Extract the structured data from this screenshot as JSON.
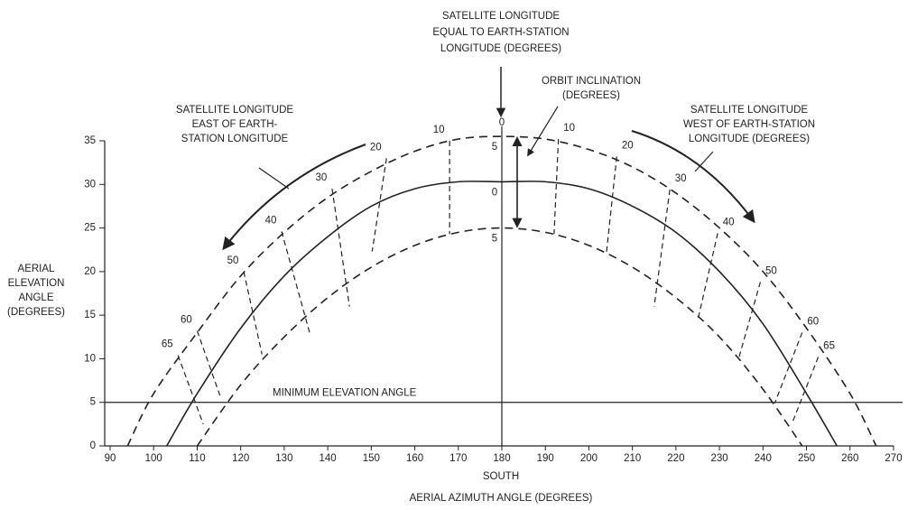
{
  "chart_data": {
    "type": "line",
    "title": [
      "SATELLITE LONGITUDE",
      "EQUAL TO EARTH-STATION",
      "LONGITUDE (DEGREES)"
    ],
    "center_label": "0",
    "xlabel": "AERIAL AZIMUTH ANGLE (DEGREES)",
    "xsublabel": "SOUTH",
    "ylabel": [
      "AERIAL",
      "ELEVATION",
      "ANGLE",
      "(DEGREES)"
    ],
    "xlim": [
      90,
      270
    ],
    "ylim": [
      0,
      35
    ],
    "xticks": [
      90,
      100,
      110,
      120,
      130,
      140,
      150,
      160,
      170,
      180,
      190,
      200,
      210,
      220,
      230,
      240,
      250,
      260,
      270
    ],
    "yticks": [
      0,
      5,
      10,
      15,
      20,
      25,
      30,
      35
    ],
    "annotations": {
      "east": [
        "SATELLITE LONGITUDE",
        "EAST OF EARTH-",
        "STATION LONGITUDE"
      ],
      "west": [
        "SATELLITE LONGITUDE",
        "WEST OF EARTH-STATION",
        "LONGITUDE (DEGREES)"
      ],
      "inclination": [
        "ORBIT INCLINATION",
        "(DEGREES)"
      ],
      "minimum": "MINIMUM ELEVATION ANGLE"
    },
    "minimum_elevation": 5,
    "series": [
      {
        "name": "5",
        "color": "#222222",
        "dashed": true,
        "x": [
          94,
          100,
          110,
          120,
          130,
          140,
          150,
          160,
          170,
          180,
          190,
          200,
          210,
          220,
          230,
          240,
          250,
          260,
          266
        ],
        "values": [
          0,
          6,
          13,
          19.5,
          24.5,
          28.5,
          31.5,
          33.8,
          35.2,
          35.5,
          35.2,
          34,
          32,
          29,
          25,
          20,
          13.5,
          6,
          0
        ]
      },
      {
        "name": "0",
        "color": "#222222",
        "dashed": false,
        "x": [
          103,
          110,
          120,
          130,
          140,
          150,
          160,
          170,
          180,
          190,
          200,
          210,
          220,
          230,
          240,
          250,
          257
        ],
        "values": [
          0,
          6,
          13.5,
          19.5,
          24,
          27.5,
          29.5,
          30.3,
          30.3,
          30.3,
          29.5,
          27.5,
          24.5,
          20,
          14,
          6,
          0
        ]
      },
      {
        "name": "5",
        "color": "#222222",
        "dashed": true,
        "x": [
          110,
          120,
          130,
          140,
          150,
          160,
          170,
          180,
          190,
          200,
          210,
          220,
          230,
          240,
          249
        ],
        "values": [
          0,
          7,
          12.5,
          17,
          20.5,
          23,
          24.5,
          25,
          24.5,
          23,
          20.5,
          17,
          12.5,
          6.5,
          0
        ]
      }
    ],
    "longitude_lines": [
      {
        "label": "10",
        "side": "east",
        "x": [
          168,
          168
        ],
        "values": [
          35,
          24.3
        ]
      },
      {
        "label": "20",
        "side": "east",
        "x": [
          153.5,
          150.2
        ],
        "values": [
          33,
          22.3
        ]
      },
      {
        "label": "30",
        "side": "east",
        "x": [
          141,
          145
        ],
        "values": [
          29.5,
          16
        ]
      },
      {
        "label": "40",
        "side": "east",
        "x": [
          129.4,
          136
        ],
        "values": [
          24.6,
          12.7
        ]
      },
      {
        "label": "50",
        "side": "east",
        "x": [
          120.7,
          124.9
        ],
        "values": [
          20,
          10.5
        ]
      },
      {
        "label": "60",
        "side": "east",
        "x": [
          110,
          115.5
        ],
        "values": [
          13.2,
          5.4
        ]
      },
      {
        "label": "65",
        "side": "east",
        "x": [
          105.6,
          111.4
        ],
        "values": [
          10.4,
          2.5
        ]
      },
      {
        "label": "10",
        "side": "west",
        "x": [
          193,
          192
        ],
        "values": [
          35.2,
          24.3
        ]
      },
      {
        "label": "20",
        "side": "west",
        "x": [
          206.4,
          204
        ],
        "values": [
          33.2,
          22
        ]
      },
      {
        "label": "30",
        "side": "west",
        "x": [
          218.6,
          215
        ],
        "values": [
          29.4,
          16
        ]
      },
      {
        "label": "40",
        "side": "west",
        "x": [
          229.6,
          225
        ],
        "values": [
          24.4,
          14.4
        ]
      },
      {
        "label": "50",
        "side": "west",
        "x": [
          239.4,
          234.4
        ],
        "values": [
          18.8,
          10
        ]
      },
      {
        "label": "60",
        "side": "west",
        "x": [
          249,
          242.7
        ],
        "values": [
          13,
          4.9
        ]
      },
      {
        "label": "65",
        "side": "west",
        "x": [
          252.7,
          246.6
        ],
        "values": [
          10.2,
          2.5
        ]
      }
    ]
  }
}
